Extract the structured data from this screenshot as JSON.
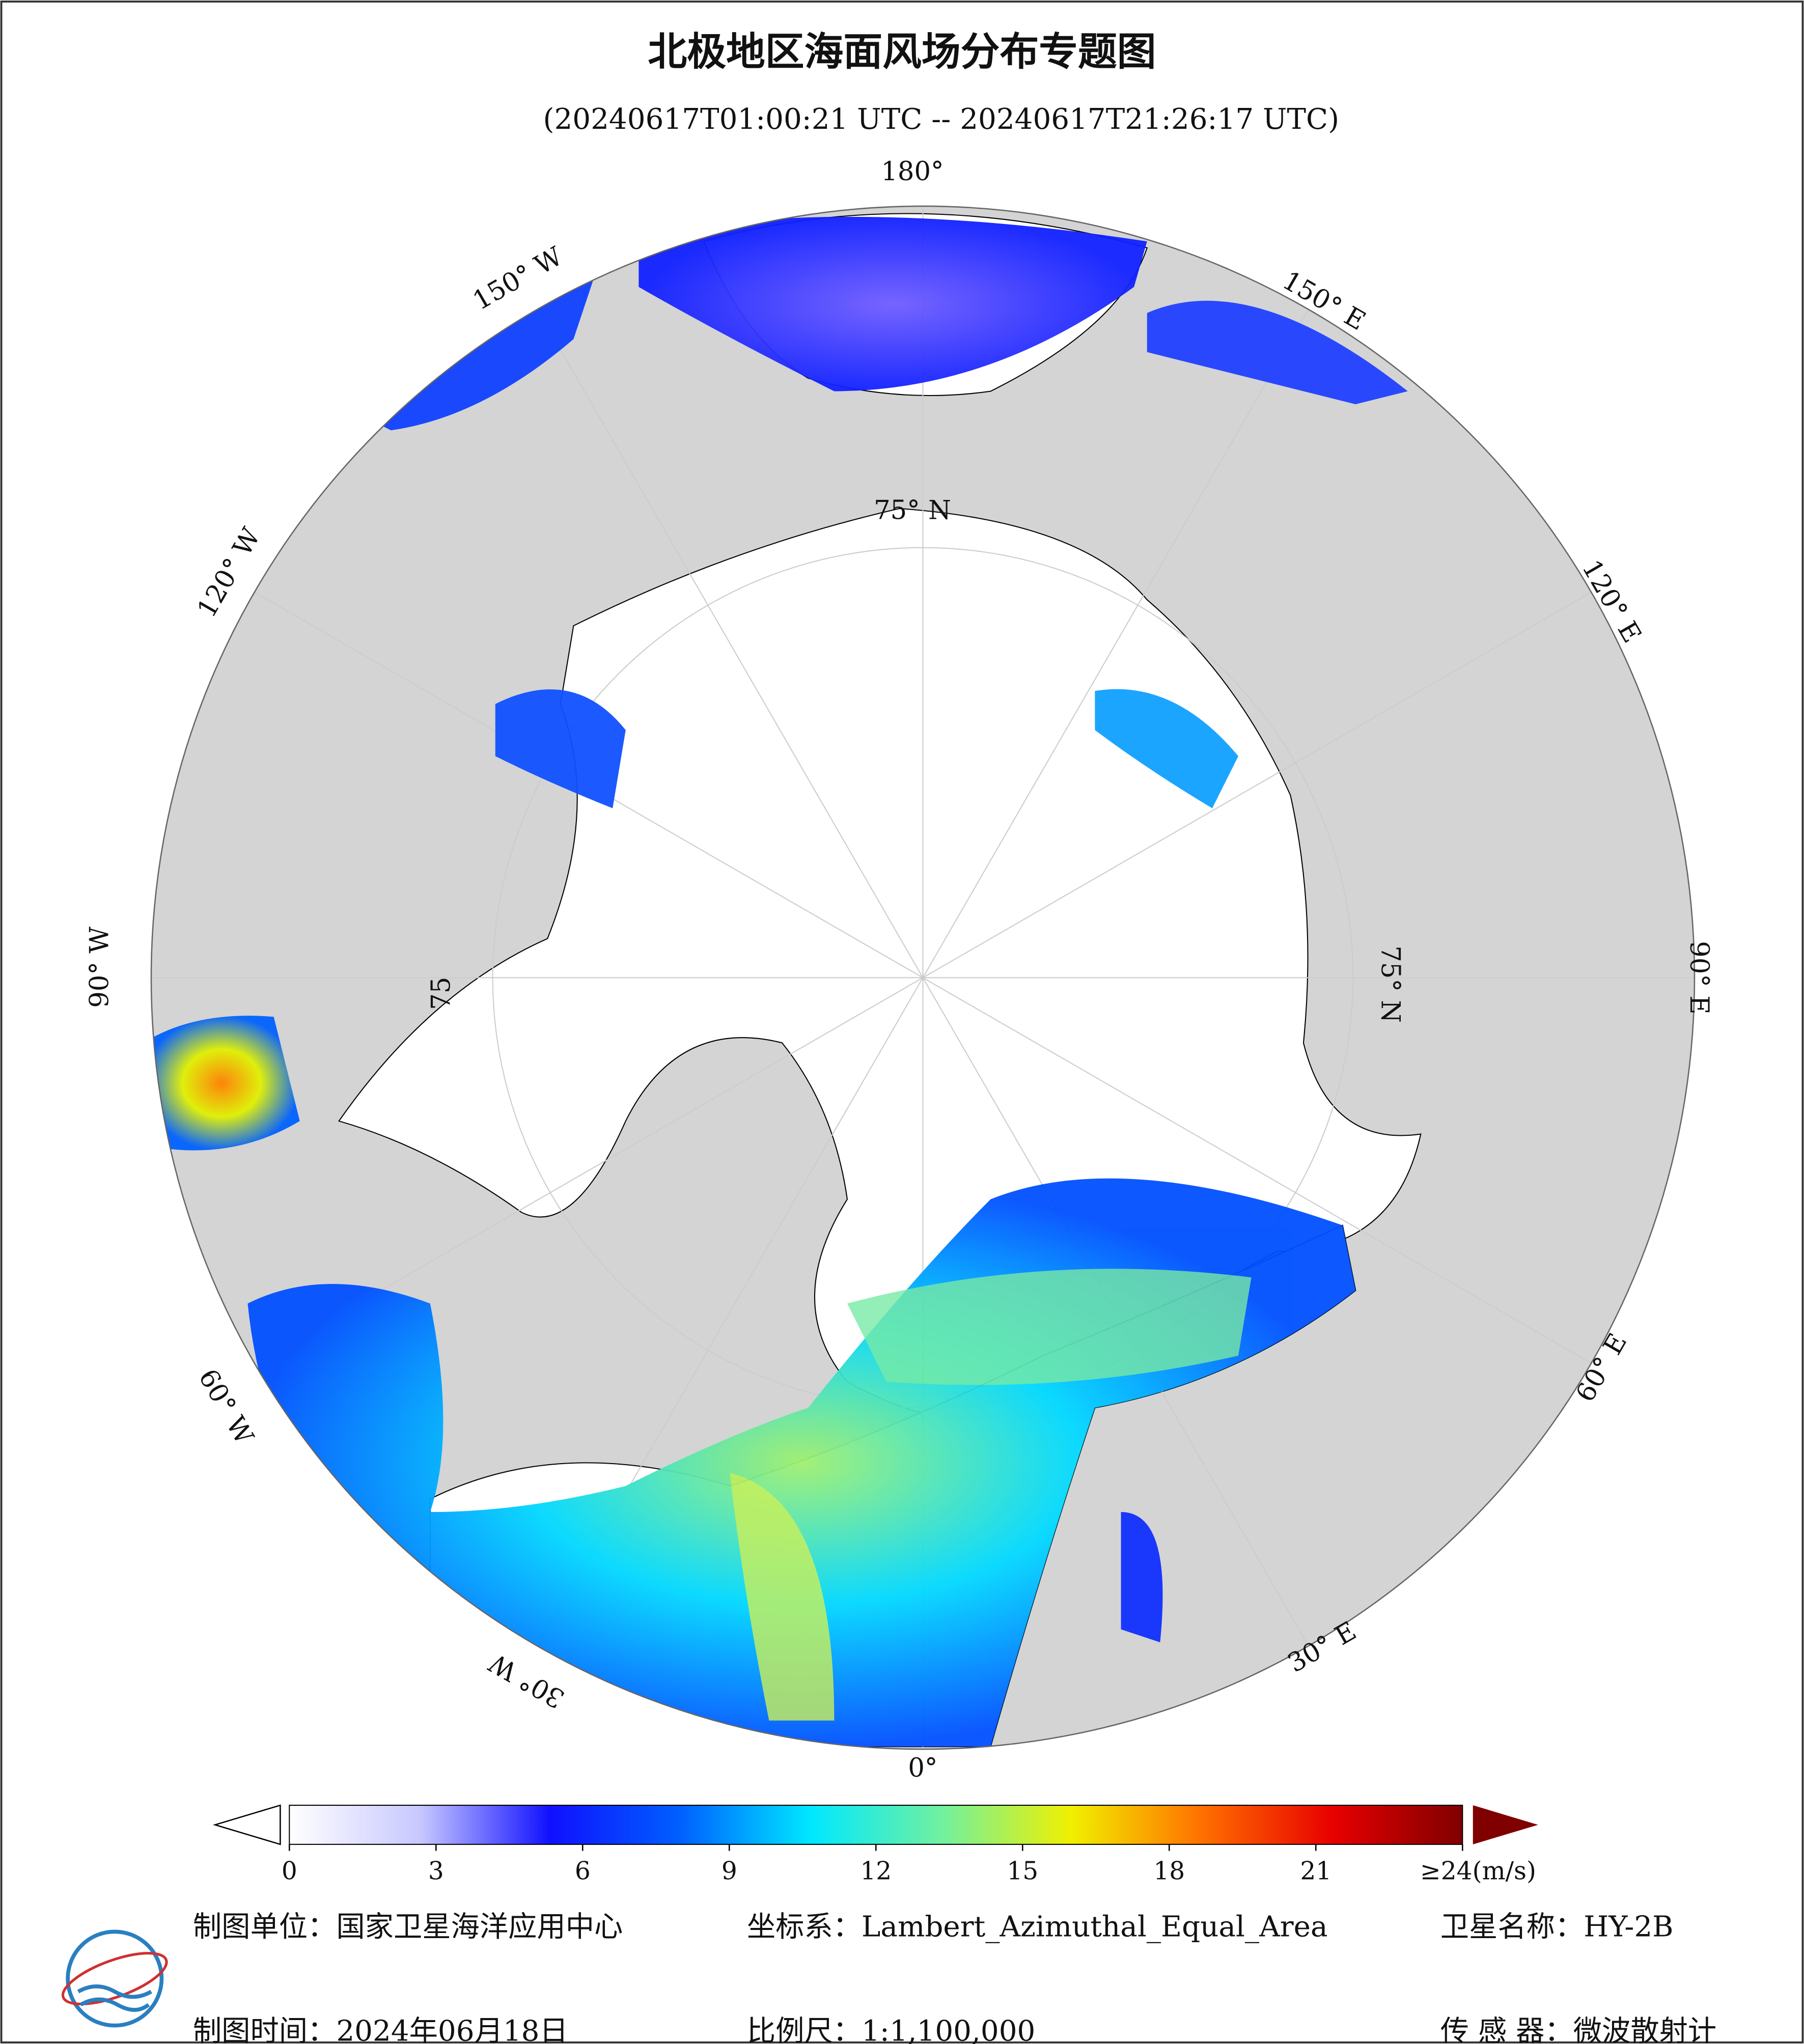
{
  "map": {
    "title": "北极地区海面风场分布专题图",
    "subtitle": "(20240617T01:00:21 UTC -- 20240617T21:26:17 UTC)",
    "lon_labels": [
      "180°",
      "150° W",
      "150° E",
      "120° W",
      "120° E",
      "90° W",
      "90° E",
      "60° W",
      "60° E",
      "30° W",
      "30° E",
      "0°"
    ],
    "lat_labels": [
      "75° N",
      "75° N",
      "75"
    ]
  },
  "colorbar": {
    "clim": [
      0,
      24
    ],
    "ticks": [
      0,
      3,
      6,
      9,
      12,
      15,
      18,
      21,
      {
        "value": 24,
        "label": "≥24(m/s)"
      }
    ],
    "colors": [
      "#ffffff",
      "#c8c8ff",
      "#1010ff",
      "#0060ff",
      "#00e8ff",
      "#70f0a0",
      "#f0f000",
      "#ff7000",
      "#e80000",
      "#800000"
    ]
  },
  "footer": {
    "rows": [
      [
        "制图单位：国家卫星海洋应用中心",
        "坐标系：Lambert_Azimuthal_Equal_Area",
        "卫星名称：HY-2B"
      ],
      [
        "制图时间：2024年06月18日",
        "比例尺：1:1,100,000",
        "传 感 器：微波散射计"
      ]
    ]
  }
}
